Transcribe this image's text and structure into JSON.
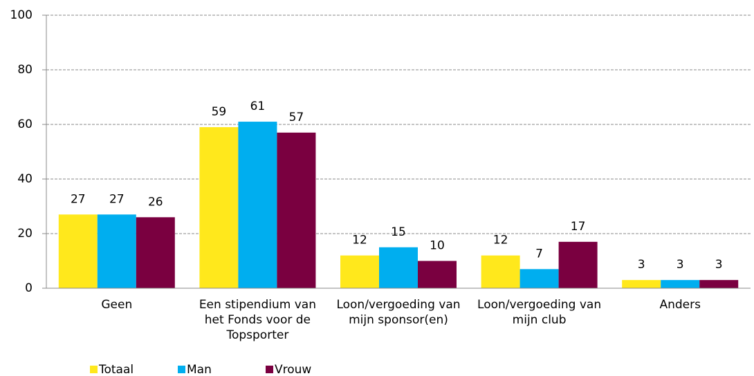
{
  "chart_data": {
    "type": "bar",
    "categories": [
      "Geen",
      "Een stipendium van het Fonds voor de Topsporter",
      "Loon/vergoeding van mijn sponsor(en)",
      "Loon/vergoeding van mijn club",
      "Anders"
    ],
    "series": [
      {
        "name": "Totaal",
        "color": "#ffe81c",
        "values": [
          27,
          59,
          12,
          12,
          3
        ]
      },
      {
        "name": "Man",
        "color": "#00aeef",
        "values": [
          27,
          61,
          15,
          7,
          3
        ]
      },
      {
        "name": "Vrouw",
        "color": "#7a0040",
        "values": [
          26,
          57,
          10,
          17,
          3
        ]
      }
    ],
    "ylim": [
      0,
      100
    ],
    "yticks": [
      0,
      20,
      40,
      60,
      80,
      100
    ],
    "grid": true,
    "legend": "bottom"
  }
}
